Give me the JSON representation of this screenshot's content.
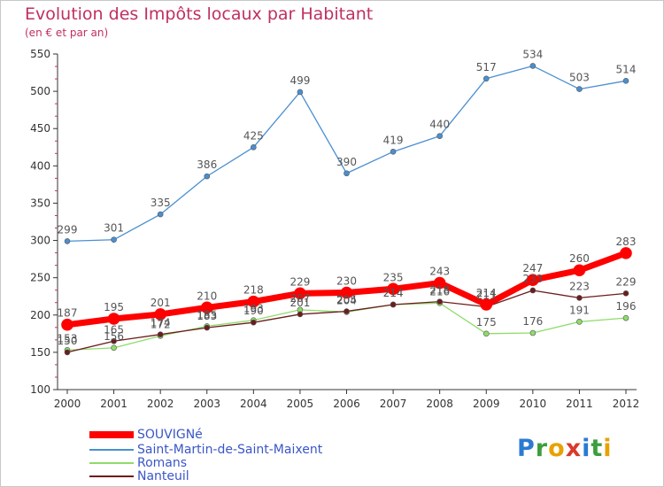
{
  "title": "Evolution des Impôts locaux par Habitant",
  "subtitle": "(en € et par an)",
  "colors": {
    "souvigne": "#ff0000",
    "saint_martin": "#4a8fd0",
    "romans": "#8edc6a",
    "nanteuil": "#6b1d1d",
    "title": "#c0305f",
    "legend_text": "#3a56c8"
  },
  "logo": {
    "text": "Proxiti"
  },
  "chart_data": {
    "type": "line",
    "title": "Evolution des Impôts locaux par Habitant",
    "subtitle": "(en € et par an)",
    "x": [
      "2000",
      "2001",
      "2002",
      "2003",
      "2004",
      "2005",
      "2006",
      "2007",
      "2008",
      "2009",
      "2010",
      "2011",
      "2012"
    ],
    "ylim": [
      100,
      550
    ],
    "yticks": [
      100,
      150,
      200,
      250,
      300,
      350,
      400,
      450,
      500,
      550
    ],
    "grid": false,
    "legend_position": "bottom-left",
    "series": [
      {
        "name": "SOUVIGNé",
        "key": "souvigne",
        "values": [
          187,
          195,
          201,
          210,
          218,
          229,
          230,
          235,
          243,
          214,
          247,
          260,
          283
        ]
      },
      {
        "name": "Saint-Martin-de-Saint-Maixent",
        "key": "saint_martin",
        "values": [
          299,
          301,
          335,
          386,
          425,
          499,
          390,
          419,
          440,
          517,
          534,
          503,
          514
        ]
      },
      {
        "name": "Romans",
        "key": "romans",
        "values": [
          153,
          156,
          172,
          185,
          193,
          207,
          204,
          214,
          216,
          175,
          176,
          191,
          196
        ]
      },
      {
        "name": "Nanteuil",
        "key": "nanteuil",
        "values": [
          150,
          165,
          174,
          183,
          190,
          201,
          205,
          214,
          218,
          211,
          233,
          223,
          229
        ]
      }
    ]
  }
}
